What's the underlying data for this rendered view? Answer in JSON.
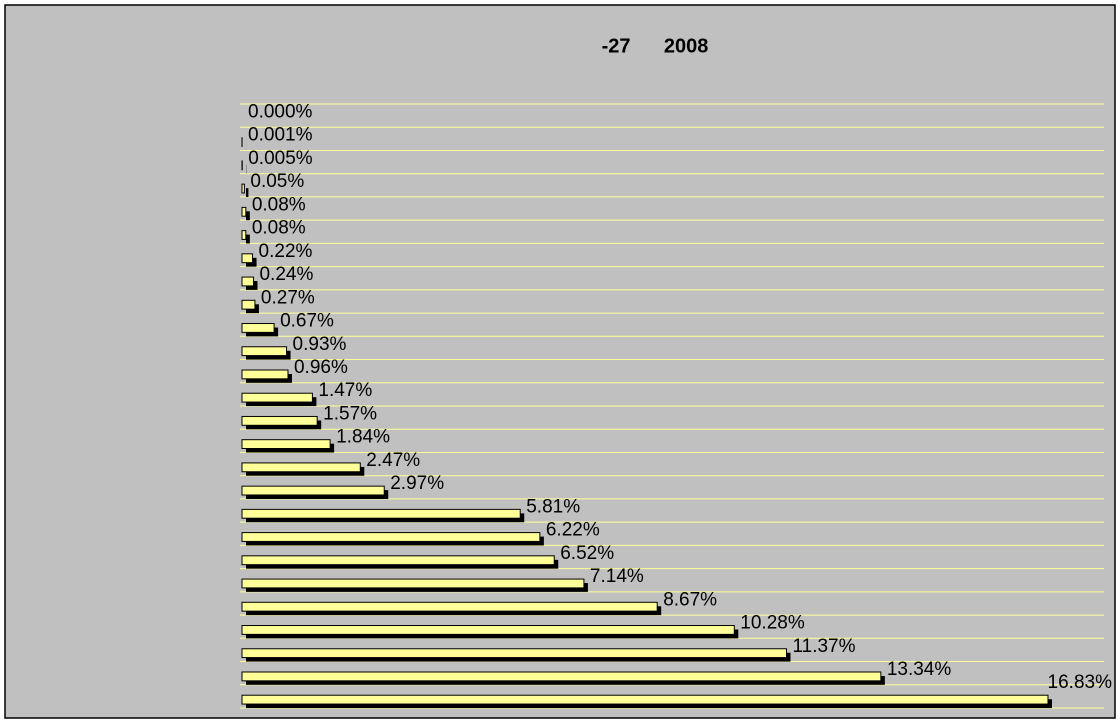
{
  "chart_data": {
    "type": "bar",
    "orientation": "horizontal",
    "title": "-27      2008",
    "values": [
      0,
      0.001,
      0.005,
      0.05,
      0.08,
      0.08,
      0.22,
      0.24,
      0.27,
      0.67,
      0.93,
      0.96,
      1.47,
      1.57,
      1.84,
      2.47,
      2.97,
      5.81,
      6.22,
      6.52,
      7.14,
      8.67,
      10.28,
      11.37,
      13.34,
      16.83
    ],
    "value_labels": [
      "0.000%",
      "0.001%",
      "0.005%",
      "0.05%",
      "0.08%",
      "0.08%",
      "0.22%",
      "0.24%",
      "0.27%",
      "0.67%",
      "0.93%",
      "0.96%",
      "1.47%",
      "1.57%",
      "1.84%",
      "2.47%",
      "2.97%",
      "5.81%",
      "6.22%",
      "6.52%",
      "7.14%",
      "8.67%",
      "10.28%",
      "11.37%",
      "13.34%",
      "16.83%"
    ],
    "color": "#ffff99",
    "shadow_color": "#000000",
    "background": "#c0c0c0",
    "grid_color": "#ffff99",
    "xlim": [
      0,
      18
    ],
    "grid": true
  }
}
